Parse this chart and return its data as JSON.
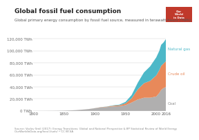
{
  "title": "Global fossil fuel consumption",
  "subtitle": "Global primary energy consumption by fossil fuel source, measured in terawatt-hours (TWh).",
  "source_text": "Source: Vaclav Smil (2017): Energy Transitions: Global and National Perspective & BP Statistical Review of World Energy\nOurWorldInData.org/fossil-fuels/ • CC BY-SA",
  "ytick_labels": [
    "0 TWh",
    "20,000 TWh",
    "40,000 TWh",
    "60,000 TWh",
    "80,000 TWh",
    "100,000 TWh",
    "120,000 TWh"
  ],
  "ytick_values": [
    0,
    20000,
    40000,
    60000,
    80000,
    100000,
    120000
  ],
  "xtick_values": [
    1800,
    1850,
    1900,
    1950,
    2000,
    2016
  ],
  "xlim": [
    1800,
    2016
  ],
  "ylim": [
    0,
    130000
  ],
  "color_coal": "#b0afaf",
  "color_oil": "#e8895a",
  "color_gas": "#4db8c8",
  "color_background": "#ffffff",
  "legend_natural_gas": "Natural gas",
  "legend_crude_oil": "Crude oil",
  "legend_coal": "Coal",
  "title_fontsize": 6.5,
  "subtitle_fontsize": 4.0,
  "tick_fontsize": 4.0,
  "label_fontsize": 4.0,
  "source_fontsize": 2.8,
  "years": [
    1800,
    1810,
    1820,
    1830,
    1840,
    1850,
    1860,
    1870,
    1880,
    1890,
    1900,
    1910,
    1920,
    1930,
    1940,
    1950,
    1960,
    1970,
    1980,
    1990,
    2000,
    2005,
    2008,
    2012,
    2016
  ],
  "coal": [
    98,
    130,
    180,
    250,
    370,
    560,
    900,
    1400,
    2200,
    3100,
    4500,
    5800,
    6500,
    7500,
    8000,
    9500,
    14000,
    19000,
    22000,
    22000,
    24000,
    30000,
    35000,
    38000,
    40000
  ],
  "oil": [
    0,
    0,
    0,
    0,
    0,
    0,
    0,
    5,
    10,
    30,
    100,
    400,
    600,
    1200,
    1500,
    3000,
    7000,
    17000,
    24000,
    28000,
    35000,
    38000,
    40000,
    41000,
    43000
  ],
  "gas": [
    0,
    0,
    0,
    0,
    0,
    0,
    0,
    0,
    0,
    0,
    50,
    150,
    300,
    600,
    1000,
    2500,
    5500,
    11000,
    18000,
    24000,
    30000,
    32000,
    35000,
    35000,
    37000
  ]
}
